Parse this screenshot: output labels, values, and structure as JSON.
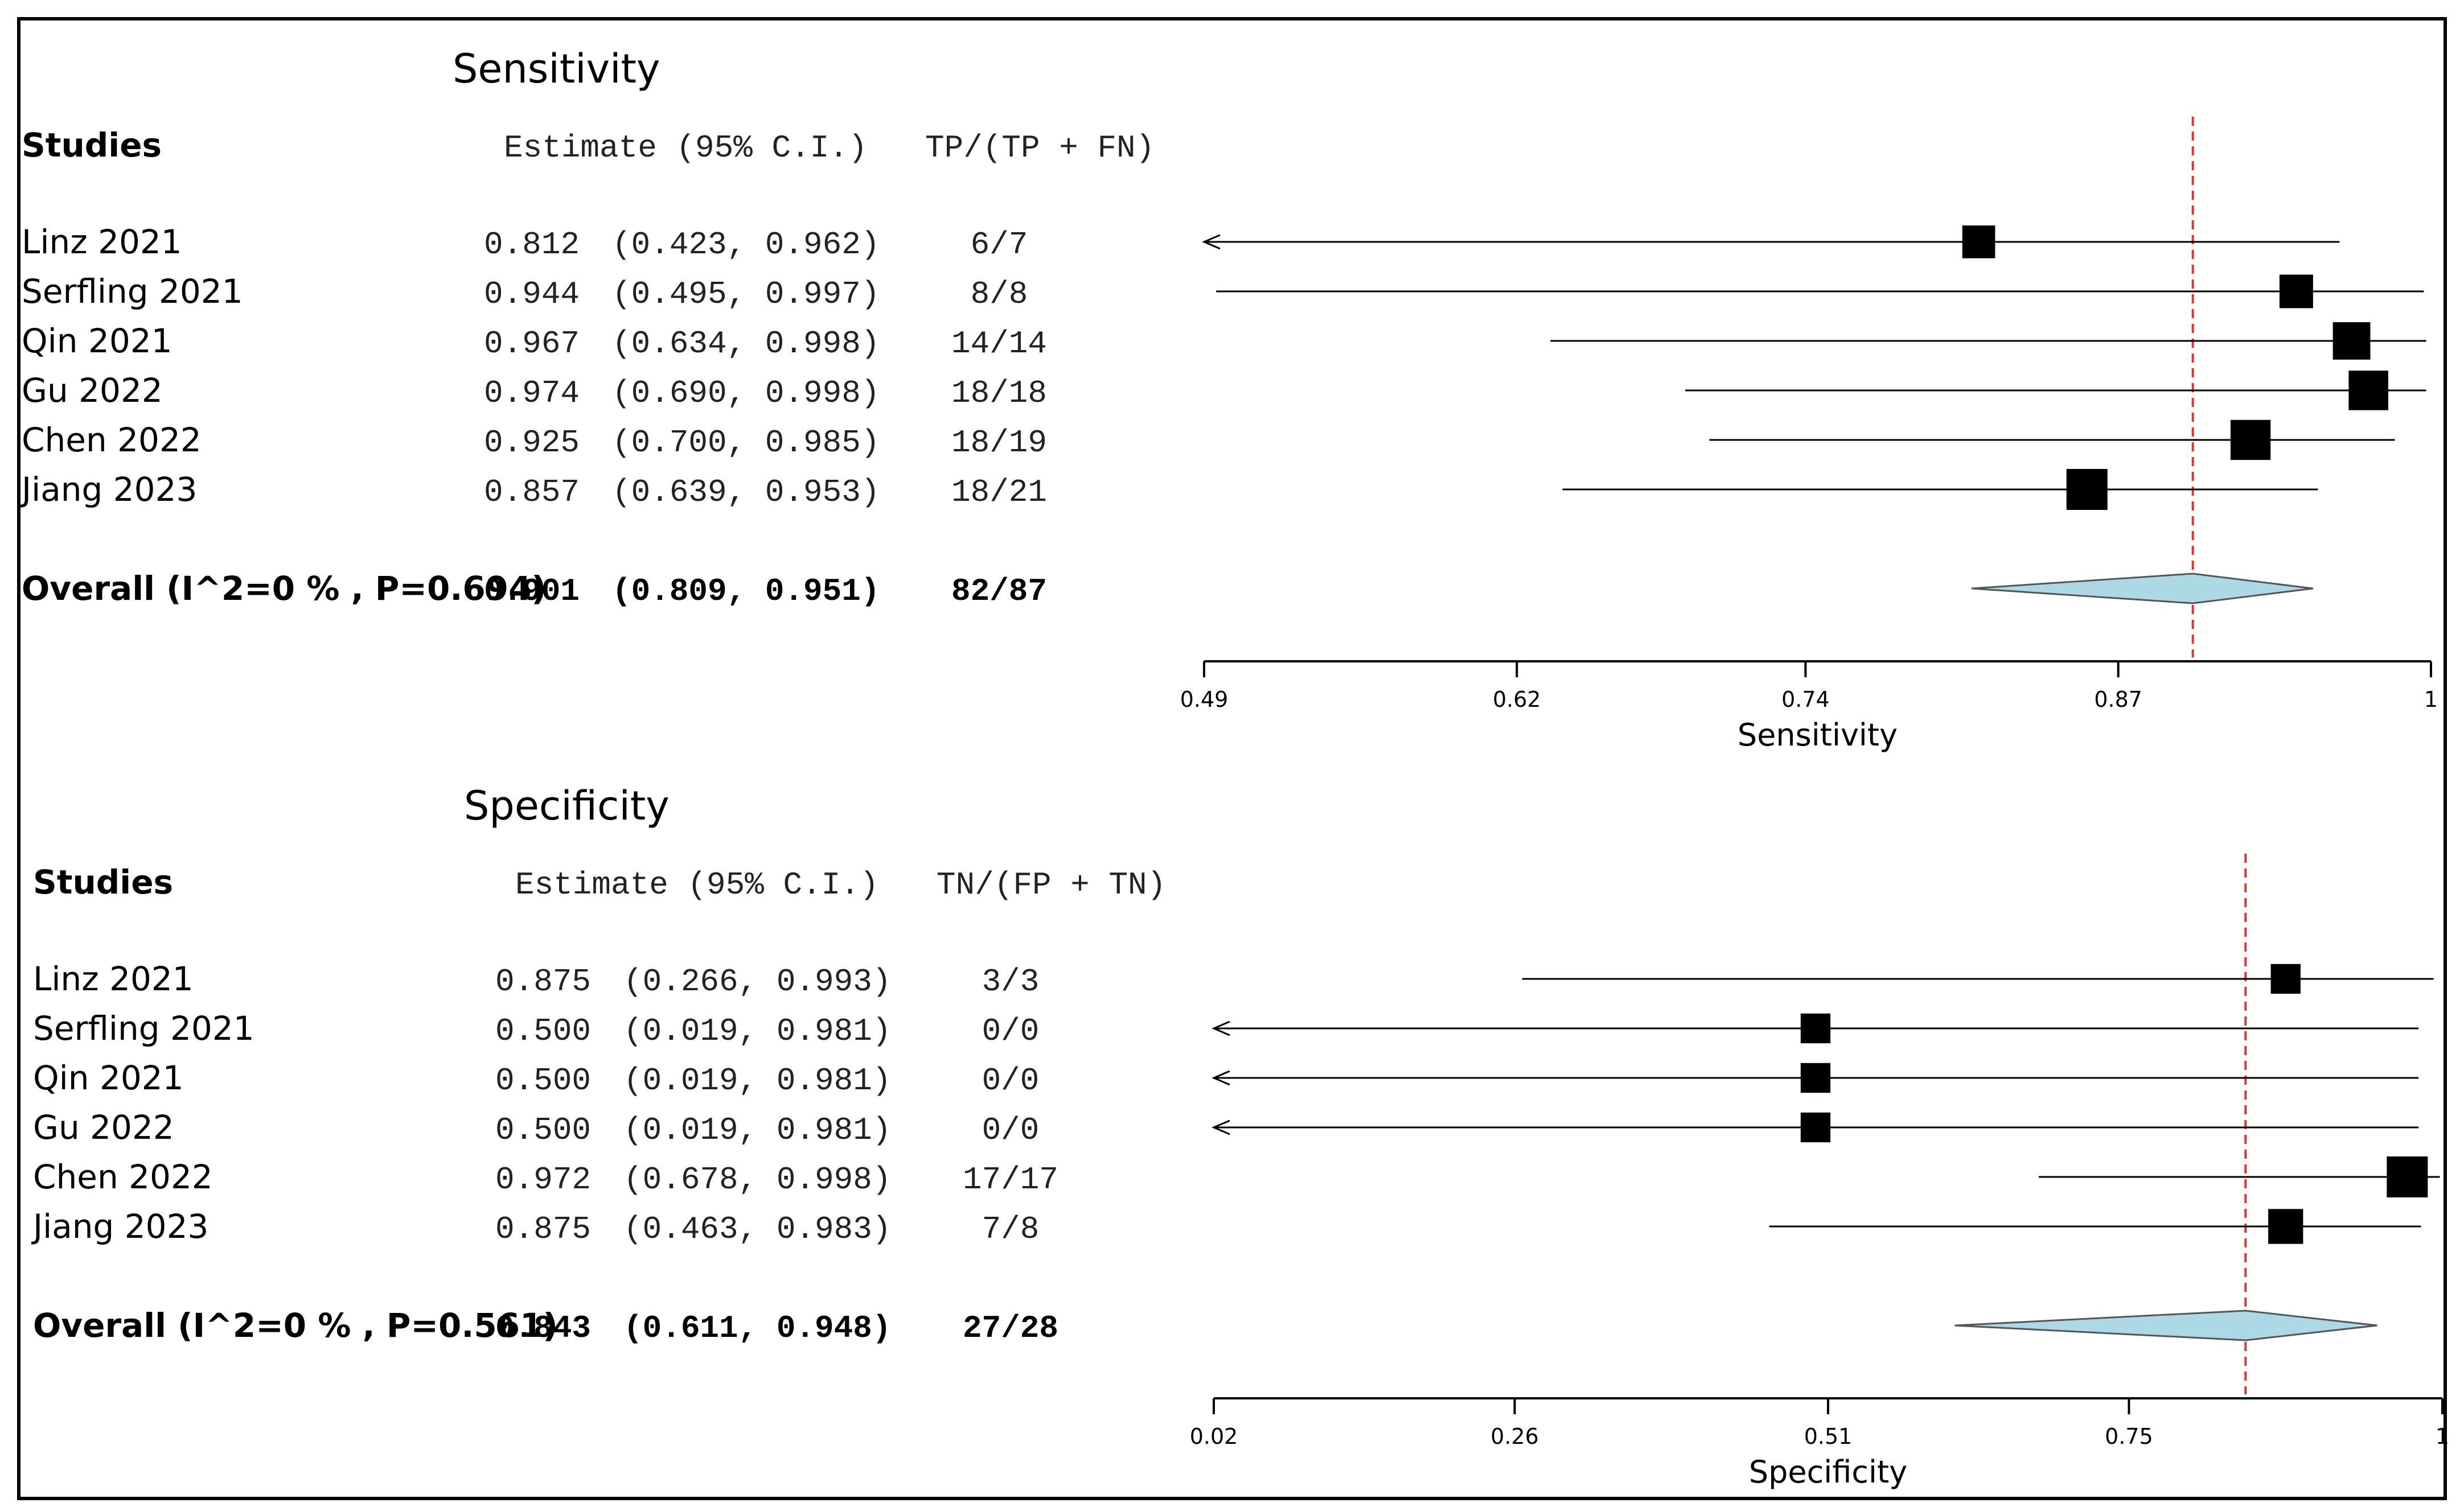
{
  "chart_data": [
    {
      "type": "forest",
      "title": "Sensitivity",
      "col_studies": "Studies",
      "col_estimate": "Estimate (95% C.I.)",
      "col_count": "TP/(TP + FN)",
      "xlabel": "Sensitivity",
      "xlim": [
        0.49,
        1.0
      ],
      "ticks": [
        0.49,
        0.62,
        0.74,
        0.87,
        1.0
      ],
      "tick_labels": [
        "0.49",
        "0.62",
        "0.74",
        "0.87",
        "1"
      ],
      "reference_line": 0.901,
      "studies": [
        {
          "name": "Linz 2021",
          "est": 0.812,
          "lo": 0.423,
          "hi": 0.962,
          "est_text": "0.812",
          "ci_text": "(0.423, 0.962)",
          "count": "6/7",
          "weight": 7
        },
        {
          "name": "Serfling 2021",
          "est": 0.944,
          "lo": 0.495,
          "hi": 0.997,
          "est_text": "0.944",
          "ci_text": "(0.495, 0.997)",
          "count": "8/8",
          "weight": 8
        },
        {
          "name": "Qin 2021",
          "est": 0.967,
          "lo": 0.634,
          "hi": 0.998,
          "est_text": "0.967",
          "ci_text": "(0.634, 0.998)",
          "count": "14/14",
          "weight": 14
        },
        {
          "name": "Gu 2022",
          "est": 0.974,
          "lo": 0.69,
          "hi": 0.998,
          "est_text": "0.974",
          "ci_text": "(0.690, 0.998)",
          "count": "18/18",
          "weight": 18
        },
        {
          "name": "Chen 2022",
          "est": 0.925,
          "lo": 0.7,
          "hi": 0.985,
          "est_text": "0.925",
          "ci_text": "(0.700, 0.985)",
          "count": "18/19",
          "weight": 19
        },
        {
          "name": "Jiang 2023",
          "est": 0.857,
          "lo": 0.639,
          "hi": 0.953,
          "est_text": "0.857",
          "ci_text": "(0.639, 0.953)",
          "count": "18/21",
          "weight": 21
        }
      ],
      "overall": {
        "name": "Overall (I^2=0 % , P=0.694)",
        "est": 0.901,
        "lo": 0.809,
        "hi": 0.951,
        "est_text": "0.901",
        "ci_text": "(0.809, 0.951)",
        "count": "82/87"
      }
    },
    {
      "type": "forest",
      "title": "Specificity",
      "col_studies": "Studies",
      "col_estimate": "Estimate (95% C.I.)",
      "col_count": "TN/(FP + TN)",
      "xlabel": "Specificity",
      "xlim": [
        0.02,
        1.0
      ],
      "ticks": [
        0.02,
        0.26,
        0.51,
        0.75,
        1.0
      ],
      "tick_labels": [
        "0.02",
        "0.26",
        "0.51",
        "0.75",
        "1"
      ],
      "reference_line": 0.843,
      "studies": [
        {
          "name": "Linz 2021",
          "est": 0.875,
          "lo": 0.266,
          "hi": 0.993,
          "est_text": "0.875",
          "ci_text": "(0.266, 0.993)",
          "count": "3/3",
          "weight": 3
        },
        {
          "name": "Serfling 2021",
          "est": 0.5,
          "lo": 0.019,
          "hi": 0.981,
          "est_text": "0.500",
          "ci_text": "(0.019, 0.981)",
          "count": "0/0",
          "weight": 3
        },
        {
          "name": "Qin 2021",
          "est": 0.5,
          "lo": 0.019,
          "hi": 0.981,
          "est_text": "0.500",
          "ci_text": "(0.019, 0.981)",
          "count": "0/0",
          "weight": 3
        },
        {
          "name": "Gu 2022",
          "est": 0.5,
          "lo": 0.019,
          "hi": 0.981,
          "est_text": "0.500",
          "ci_text": "(0.019, 0.981)",
          "count": "0/0",
          "weight": 3
        },
        {
          "name": "Chen 2022",
          "est": 0.972,
          "lo": 0.678,
          "hi": 0.998,
          "est_text": "0.972",
          "ci_text": "(0.678, 0.998)",
          "count": "17/17",
          "weight": 17
        },
        {
          "name": "Jiang 2023",
          "est": 0.875,
          "lo": 0.463,
          "hi": 0.983,
          "est_text": "0.875",
          "ci_text": "(0.463, 0.983)",
          "count": "7/8",
          "weight": 8
        }
      ],
      "overall": {
        "name": "Overall (I^2=0 % , P=0.561)",
        "est": 0.843,
        "lo": 0.611,
        "hi": 0.948,
        "est_text": "0.843",
        "ci_text": "(0.611, 0.948)",
        "count": "27/28"
      }
    }
  ],
  "colors": {
    "line": "#000000",
    "marker": "#000000",
    "diamond_fill": "#add8e6",
    "reference": "#e8312f",
    "frame": "#000000"
  }
}
